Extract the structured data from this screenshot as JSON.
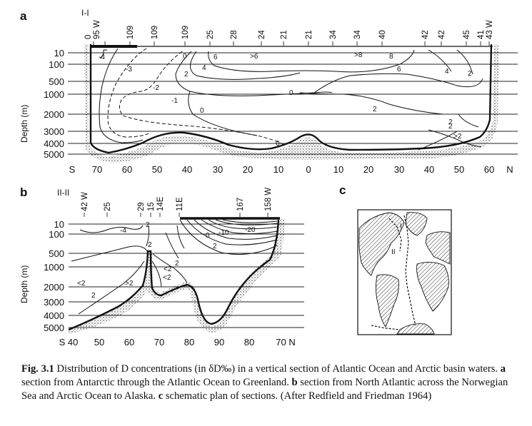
{
  "panels": {
    "a": {
      "letter": "a",
      "section_name": "I-I",
      "top_labels": [
        "0",
        "95 W",
        "109",
        "109",
        "109",
        "25",
        "28",
        "24",
        "21",
        "21",
        "34",
        "34",
        "40",
        "42",
        "42",
        "45",
        "41",
        "43 W"
      ],
      "depth_ticks": [
        "10",
        "100",
        "500",
        "1000",
        "2000",
        "3000",
        "4000",
        "5000"
      ],
      "lat_ticks": [
        "S",
        "70",
        "60",
        "50",
        "40",
        "30",
        "20",
        "10",
        "0",
        "10",
        "20",
        "30",
        "40",
        "50",
        "60",
        "N"
      ],
      "contour_labels": [
        "-4",
        "-3",
        "-2",
        "-1",
        "0",
        "0",
        "0",
        "0",
        "2",
        "2",
        "2",
        "2",
        "4",
        "4",
        "6",
        "6",
        ">6",
        ">8",
        "8",
        "2",
        ">2"
      ]
    },
    "b": {
      "letter": "b",
      "section_name": "II-II",
      "top_labels": [
        "42 W",
        "25",
        "29",
        "15",
        "14E",
        "11E",
        "167",
        "158 W"
      ],
      "depth_ticks": [
        "10",
        "100",
        "500",
        "1000",
        "2000",
        "3000",
        "4000",
        "5000"
      ],
      "lat_ticks": [
        "S 40",
        "50",
        "60",
        "70",
        "80",
        "90",
        "80",
        "70 N"
      ],
      "contour_labels": [
        "-4",
        "2",
        "2",
        "-20",
        "-10",
        "0",
        "2",
        "<2",
        ">2",
        "2",
        "<2",
        "<2",
        "2"
      ]
    },
    "c": {
      "letter": "c",
      "map_labels": [
        "I",
        "II"
      ]
    }
  },
  "axis": {
    "ylabel": "Depth (m)"
  },
  "caption": {
    "fig": "Fig. 3.1",
    "part1": "Distribution of D concentrations (in δD‰) in a vertical section of Atlantic Ocean and Arctic basin waters. ",
    "a": "a",
    "part2": " section from Antarctic through the Atlantic Ocean to Greenland. ",
    "b": "b",
    "part3": " section from North Atlantic across the Norwegian Sea and Arctic Ocean to Alaska. ",
    "c": "c",
    "part4": " schematic plan of sections. (After Redfield and Friedman 1964)"
  }
}
